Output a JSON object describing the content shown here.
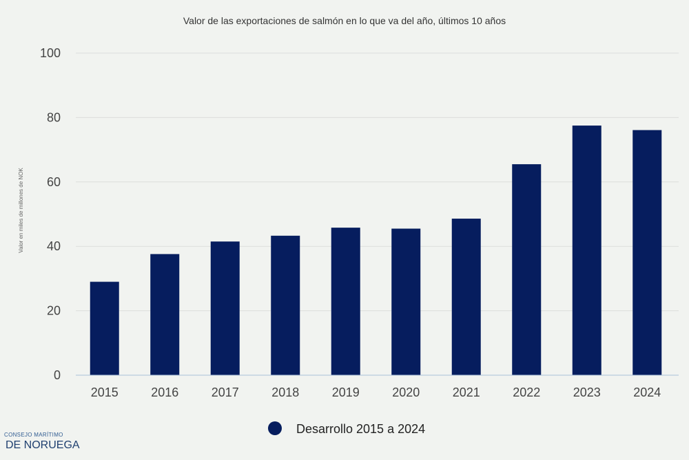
{
  "chart_data": {
    "type": "bar",
    "title": "Valor de las exportaciones de salmón en lo que va del año, últimos 10 años",
    "ylabel": "Valor en miles de millones de NOK",
    "xlabel": "",
    "categories": [
      "2015",
      "2016",
      "2017",
      "2018",
      "2019",
      "2020",
      "2021",
      "2022",
      "2023",
      "2024"
    ],
    "series": [
      {
        "name": "Desarrollo 2015 a 2024",
        "values": [
          29.0,
          37.6,
          41.5,
          43.3,
          45.8,
          45.5,
          48.6,
          65.5,
          77.5,
          76.1
        ],
        "color": "#061d5e"
      }
    ],
    "ylim": [
      0,
      100
    ],
    "yticks": [
      "0",
      "20",
      "40",
      "60",
      "80",
      "100"
    ],
    "grid": true,
    "legend_position": "bottom-center"
  },
  "brand": {
    "line1": "CONSEJO MARÍTIMO",
    "line2": "DE NORUEGA"
  },
  "colors": {
    "background": "#f1f3f0",
    "bar": "#061d5e",
    "grid": "#dcdedb",
    "axis": "#a9c0d8",
    "text": "#333333"
  }
}
